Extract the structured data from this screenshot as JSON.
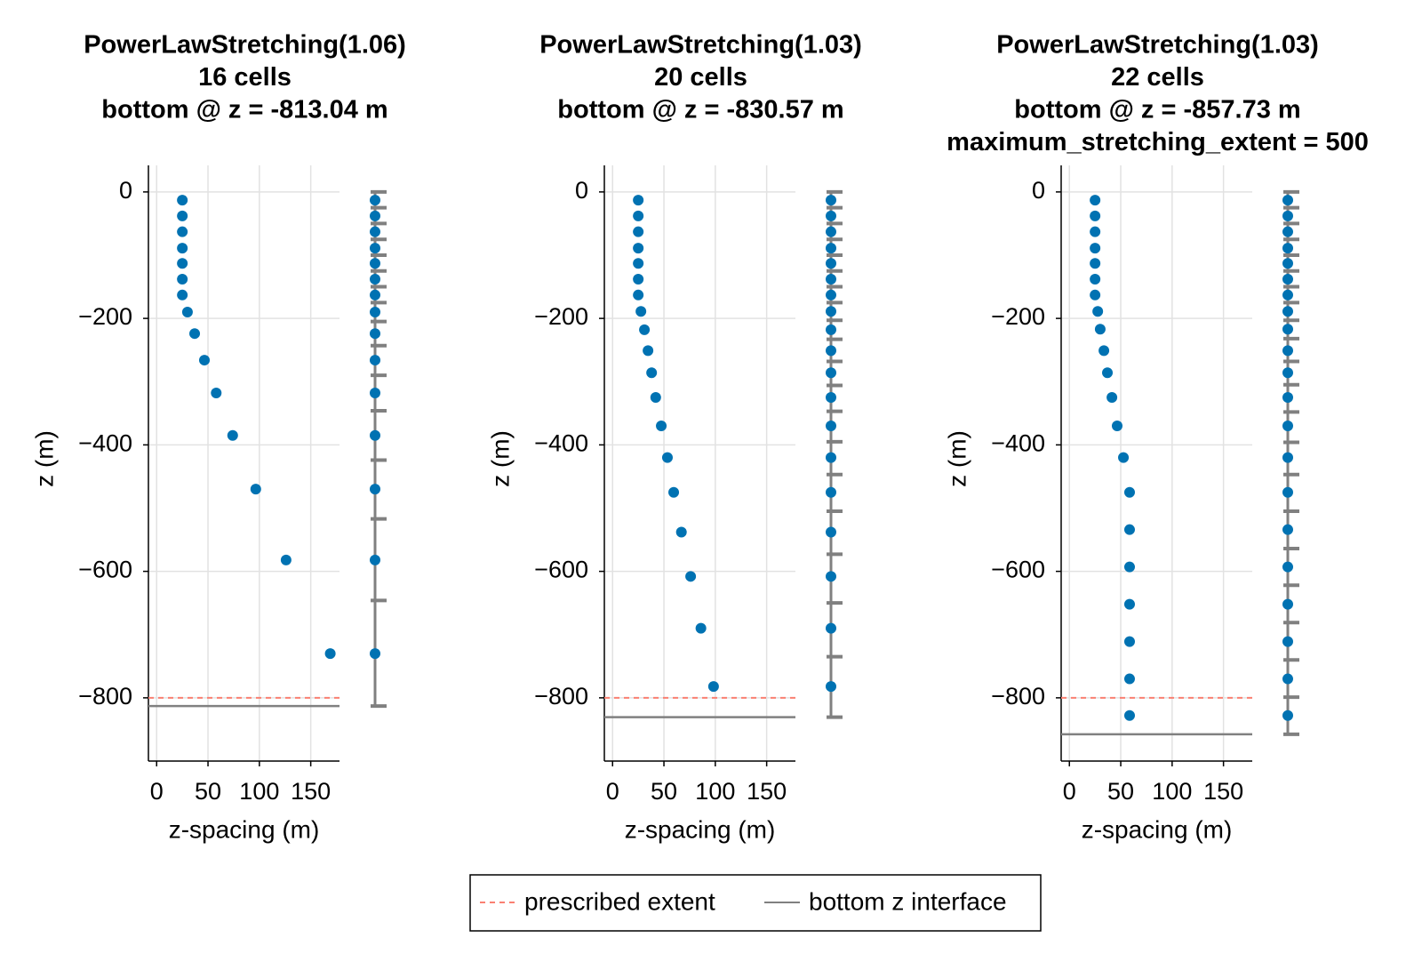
{
  "chart_data": [
    {
      "type": "scatter",
      "title": [
        "PowerLawStretching(1.06)",
        "16 cells",
        "bottom @ z = -813.04 m"
      ],
      "xlabel": "z-spacing (m)",
      "ylabel": "z (m)",
      "x": [
        25,
        25,
        25,
        25,
        25,
        25,
        25,
        30,
        37,
        46.5,
        58,
        74,
        96.5,
        126,
        169
      ],
      "y": [
        -13,
        -38,
        -63,
        -89,
        -113,
        -138,
        -163,
        -190,
        -224,
        -266,
        -318,
        -385,
        -470,
        -582,
        -730
      ],
      "faces": [
        0,
        -25,
        -50,
        -75,
        -100,
        -125,
        -150,
        -175,
        -205,
        -243,
        -290,
        -346,
        -424,
        -517,
        -646,
        -813.04
      ],
      "prescribed_extent": -800,
      "bottom_z": -813.04,
      "color": "#0072b2",
      "grid": true,
      "xlim": [
        -8,
        178
      ],
      "ylim": [
        -900,
        42
      ],
      "xticks": [
        0,
        50,
        100,
        150
      ],
      "yticks": [
        0,
        {
          "value": -200,
          "label": "−200"
        },
        {
          "value": -400,
          "label": "−400"
        },
        {
          "value": -600,
          "label": "−600"
        },
        {
          "value": -800,
          "label": "−800"
        }
      ]
    },
    {
      "type": "scatter",
      "title": [
        "PowerLawStretching(1.03)",
        "20 cells",
        "bottom @ z = -830.57 m"
      ],
      "xlabel": "z-spacing (m)",
      "ylabel": "z (m)",
      "x": [
        25,
        25,
        25,
        25,
        25,
        25,
        25,
        27.6,
        31,
        34.5,
        38,
        42,
        47.4,
        53.4,
        59.5,
        67,
        76,
        86,
        98.3
      ],
      "y": [
        -13,
        -38,
        -63,
        -89,
        -113,
        -138,
        -163,
        -189,
        -218,
        -251,
        -286,
        -325,
        -370,
        -420,
        -475,
        -538,
        -608,
        -690,
        -782
      ],
      "faces": [
        0,
        -25,
        -50,
        -75,
        -100,
        -125,
        -150,
        -175,
        -203,
        -233,
        -268,
        -306,
        -347,
        -395,
        -447,
        -505,
        -573,
        -650,
        -735,
        -830.57
      ],
      "prescribed_extent": -800,
      "bottom_z": -830.57,
      "color": "#0072b2",
      "grid": true,
      "xlim": [
        -8,
        178
      ],
      "ylim": [
        -900,
        42
      ],
      "xticks": [
        0,
        50,
        100,
        150
      ],
      "yticks": [
        0,
        {
          "value": -200,
          "label": "−200"
        },
        {
          "value": -400,
          "label": "−400"
        },
        {
          "value": -600,
          "label": "−600"
        },
        {
          "value": -800,
          "label": "−800"
        }
      ]
    },
    {
      "type": "scatter",
      "title": [
        "PowerLawStretching(1.03)",
        "22 cells",
        "bottom @ z = -857.73 m",
        "maximum_stretching_extent = 500"
      ],
      "xlabel": "z-spacing (m)",
      "ylabel": "z (m)",
      "x": [
        25,
        25,
        25,
        25,
        25,
        25,
        25,
        27.6,
        30,
        33.6,
        37,
        41.4,
        46.5,
        52.6,
        58.6,
        58.6,
        58.6,
        58.6,
        58.6,
        58.6,
        58.6
      ],
      "y": [
        -13,
        -38,
        -63,
        -89,
        -113,
        -138,
        -163,
        -189,
        -217,
        -251,
        -286,
        -325,
        -370,
        -420,
        -475,
        -534,
        -593,
        -652,
        -711,
        -770,
        -828
      ],
      "faces": [
        0,
        -25,
        -50,
        -75,
        -100,
        -125,
        -150,
        -175,
        -203,
        -232,
        -268,
        -305,
        -348,
        -396,
        -447,
        -505,
        -564,
        -622,
        -681,
        -740,
        -799,
        -857.73
      ],
      "prescribed_extent": -800,
      "bottom_z": -857.73,
      "color": "#0072b2",
      "grid": true,
      "xlim": [
        -8,
        178
      ],
      "ylim": [
        -900,
        42
      ],
      "xticks": [
        0,
        50,
        100,
        150
      ],
      "yticks": [
        0,
        {
          "value": -200,
          "label": "−200"
        },
        {
          "value": -400,
          "label": "−400"
        },
        {
          "value": -600,
          "label": "−600"
        },
        {
          "value": -800,
          "label": "−800"
        }
      ]
    }
  ],
  "legend": [
    {
      "name": "prescribed extent",
      "color": "#fa8072",
      "dash": true
    },
    {
      "name": "bottom z interface",
      "color": "#808080",
      "dash": false
    }
  ]
}
